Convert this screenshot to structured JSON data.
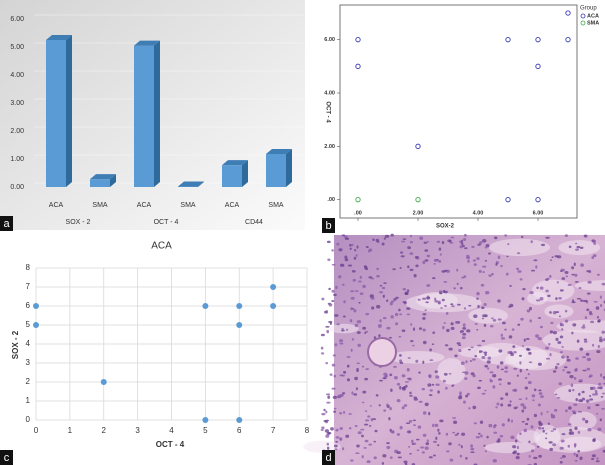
{
  "chart_data": [
    {
      "type": "bar",
      "panel_label": "a",
      "categories": [
        "ACA",
        "SMA",
        "ACA",
        "SMA",
        "ACA",
        "SMA"
      ],
      "group_labels": [
        "SOX - 2",
        "OCT - 4",
        "CD44"
      ],
      "values": [
        5.25,
        0.28,
        5.05,
        0.02,
        0.78,
        1.18
      ],
      "color": "#5b9bd5",
      "ylim": [
        0,
        6
      ],
      "yticks": [
        {
          "value": 0,
          "label": "0.00"
        },
        {
          "value": 1,
          "label": "1.00"
        },
        {
          "value": 2,
          "label": "2.00"
        },
        {
          "value": 3,
          "label": "3.00"
        },
        {
          "value": 4,
          "label": "4.00"
        },
        {
          "value": 5,
          "label": "5.00"
        },
        {
          "value": 6,
          "label": "6.00"
        }
      ],
      "grid": true
    },
    {
      "type": "scatter",
      "panel_label": "b",
      "xlabel": "SOX-2",
      "ylabel": "OCT - 4",
      "xlim": [
        -0.6,
        7.3
      ],
      "ylim": [
        -0.2,
        7.3
      ],
      "xticks": [
        {
          "value": 0,
          "label": ".00"
        },
        {
          "value": 2,
          "label": "2.00"
        },
        {
          "value": 4,
          "label": "4.00"
        },
        {
          "value": 6,
          "label": "6.00"
        }
      ],
      "yticks": [
        {
          "value": 0,
          "label": ".00"
        },
        {
          "value": 2,
          "label": "2.00"
        },
        {
          "value": 4,
          "label": "4.00"
        },
        {
          "value": 6,
          "label": "6.00"
        }
      ],
      "marker": "hollow",
      "grid": false,
      "legend": "right",
      "legend_title": "Group",
      "series": [
        {
          "name": "ACA",
          "color": "#3a3ab8",
          "x": [
            0,
            0,
            2,
            5,
            5,
            6,
            6,
            6,
            7,
            7
          ],
          "y": [
            6,
            5,
            2,
            6,
            0,
            6,
            5,
            0,
            7,
            6
          ]
        },
        {
          "name": "SMA",
          "color": "#3daa47",
          "x": [
            0,
            2
          ],
          "y": [
            0,
            0
          ]
        }
      ]
    },
    {
      "type": "scatter",
      "panel_label": "c",
      "title": "ACA",
      "xlabel": "OCT - 4",
      "ylabel": "SOX - 2",
      "xlim": [
        0,
        8
      ],
      "ylim": [
        0,
        8
      ],
      "xticks": [
        0,
        1,
        2,
        3,
        4,
        5,
        6,
        7,
        8
      ],
      "yticks": [
        0,
        1,
        2,
        3,
        4,
        5,
        6,
        7,
        8
      ],
      "marker": "filled",
      "grid": true,
      "color": "#5b9bd5",
      "x": [
        0,
        0,
        2,
        5,
        5,
        6,
        6,
        6,
        7,
        7
      ],
      "y": [
        6,
        5,
        2,
        6,
        0,
        6,
        5,
        0,
        7,
        6
      ]
    }
  ],
  "image": {
    "panel_label": "d"
  }
}
